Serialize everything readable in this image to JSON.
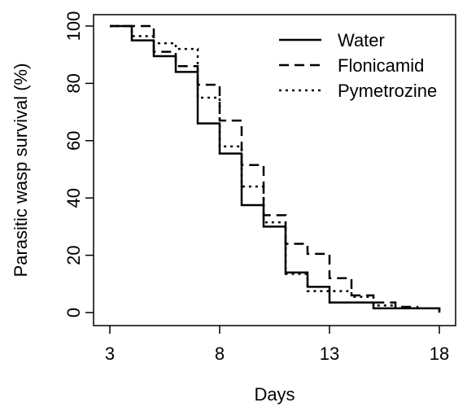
{
  "chart_data": {
    "type": "line",
    "step": true,
    "title": "",
    "xlabel": "Days",
    "ylabel": "Parasitic wasp survival (%)",
    "xlim": [
      3,
      18
    ],
    "ylim": [
      0,
      100
    ],
    "xticks": [
      3,
      8,
      13,
      18
    ],
    "yticks": [
      0,
      20,
      40,
      60,
      80,
      100
    ],
    "grid": false,
    "legend": "top-right",
    "series": [
      {
        "name": "Water",
        "line_style": "solid",
        "x": [
          3,
          4,
          5,
          6,
          7,
          8,
          9,
          10,
          11,
          12,
          13,
          14,
          15,
          16,
          17,
          18
        ],
        "values": [
          100,
          95,
          89.5,
          84,
          66,
          55.5,
          37.5,
          30,
          14,
          9,
          3.5,
          3.5,
          1.5,
          1.5,
          1.5,
          0
        ]
      },
      {
        "name": "Flonicamid",
        "line_style": "dashed",
        "x": [
          3,
          4,
          5,
          6,
          7,
          8,
          9,
          10,
          11,
          12,
          13,
          14,
          15,
          16,
          17,
          18
        ],
        "values": [
          100,
          100,
          91,
          86,
          79.5,
          67,
          51.5,
          34,
          24,
          20.5,
          12,
          6,
          3.5,
          2,
          1.5,
          0
        ]
      },
      {
        "name": "Pymetrozine",
        "line_style": "dotted",
        "x": [
          3,
          4,
          5,
          6,
          7,
          8,
          9,
          10,
          11,
          12,
          13,
          14,
          15,
          16,
          17,
          18
        ],
        "values": [
          100,
          96.5,
          94,
          92,
          75,
          58,
          44,
          31.5,
          13.5,
          7.5,
          7.5,
          5.5,
          2.5,
          1.5,
          1.5,
          0
        ]
      }
    ]
  }
}
